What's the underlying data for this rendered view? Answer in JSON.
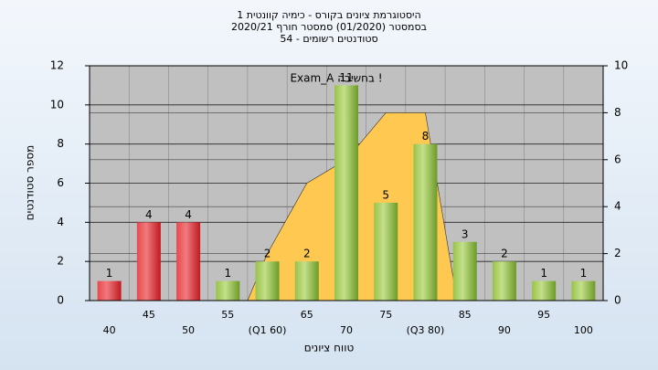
{
  "chart_data": {
    "type": "bar",
    "title": [
      "היסטוגרמת ציונים בקורס - כימיה קוונטית 1",
      "בסמסטר  (01/2020)  סמסטר חורף 2020/21",
      "סטודנטים רשומים - 54"
    ],
    "annotation": "Exam_A בחשיבה !",
    "x_label": "טווח ציונים",
    "y_label": "מספר סטודנטים",
    "categories": [
      "40",
      "45",
      "50",
      "55",
      "(Q1 60)",
      "65",
      "70",
      "75",
      "(Q3 80)",
      "85",
      "90",
      "95",
      "100"
    ],
    "values": [
      1,
      4,
      4,
      1,
      2,
      2,
      11,
      5,
      8,
      3,
      2,
      1,
      1
    ],
    "colors": [
      "red",
      "red",
      "red",
      "green",
      "green",
      "green",
      "green",
      "green",
      "green",
      "green",
      "green",
      "green",
      "green"
    ],
    "area": {
      "axis": "y2",
      "color": "#ffc850",
      "values": [
        null,
        null,
        null,
        null,
        2,
        5,
        6,
        8,
        8,
        null,
        null,
        null,
        null
      ]
    },
    "ylim": [
      0,
      12
    ],
    "yticks": [
      0,
      2,
      4,
      6,
      8,
      10,
      12
    ],
    "y2lim": [
      0,
      10
    ],
    "y2ticks": [
      0,
      2,
      4,
      6,
      8,
      10
    ],
    "grid": true
  }
}
